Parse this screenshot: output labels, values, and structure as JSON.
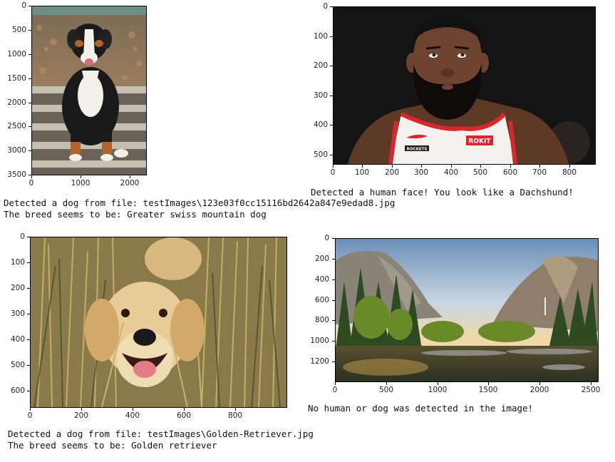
{
  "panels": {
    "p1": {
      "image": "bernese-mountain-dog-photo",
      "yticks": [
        "0",
        "500",
        "1000",
        "1500",
        "2000",
        "2500",
        "3000",
        "3500"
      ],
      "xticks": [
        "0",
        "1000",
        "2000"
      ]
    },
    "p2": {
      "image": "bearded-basketball-player-photo",
      "yticks": [
        "0",
        "100",
        "200",
        "300",
        "400",
        "500"
      ],
      "xticks": [
        "0",
        "100",
        "200",
        "300",
        "400",
        "500",
        "600",
        "700",
        "800"
      ],
      "jersey_text": "ROCKETS",
      "jersey_logo": "ROKIT"
    },
    "p3": {
      "image": "golden-retriever-photo",
      "yticks": [
        "0",
        "100",
        "200",
        "300",
        "400",
        "500",
        "600"
      ],
      "xticks": [
        "0",
        "200",
        "400",
        "600",
        "800"
      ]
    },
    "p4": {
      "image": "yosemite-valley-landscape-photo",
      "yticks": [
        "0",
        "200",
        "400",
        "600",
        "800",
        "1000",
        "1200"
      ],
      "xticks": [
        "0",
        "500",
        "1000",
        "1500",
        "2000",
        "2500"
      ]
    }
  },
  "outputs": {
    "dog1_line1": "Detected a dog from file: testImages\\123e03f0cc15116bd2642a847e9edad8.jpg",
    "dog1_line2": "The breed seems to be: Greater swiss mountain dog",
    "human_line": "Detected a human face! You look like a Dachshund!",
    "none_line": "No human or dog was detected in the image!",
    "dog2_line1": "Detected a dog from file: testImages\\Golden-Retriever.jpg",
    "dog2_line2": "The breed seems to be: Golden retriever"
  }
}
